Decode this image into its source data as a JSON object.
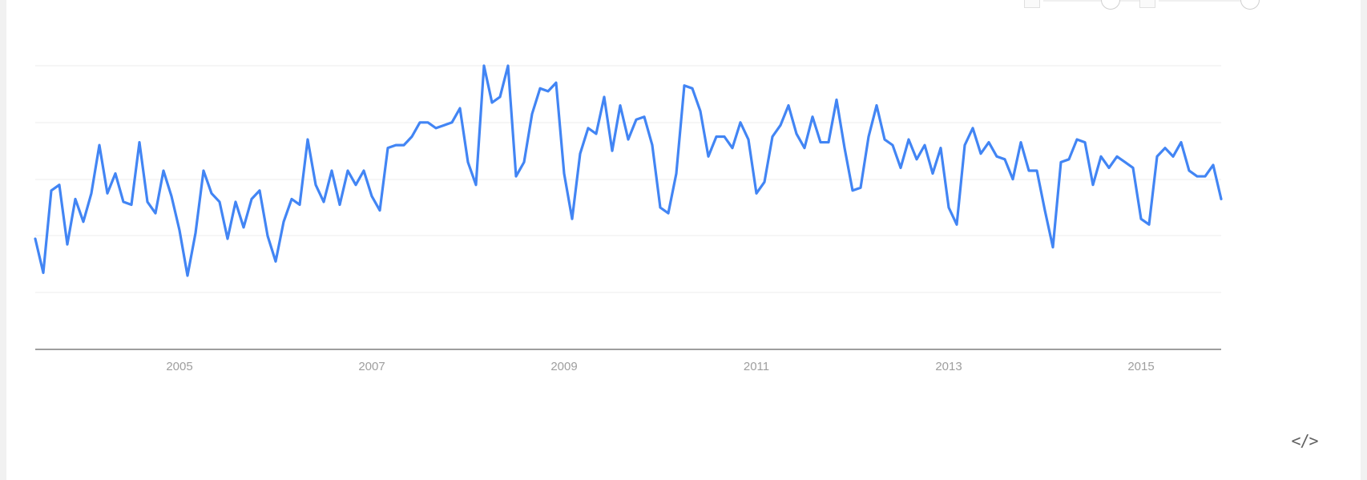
{
  "chart_data": {
    "type": "line",
    "title": "",
    "xlabel": "",
    "ylabel": "",
    "x_ticks": [
      "2005",
      "2007",
      "2009",
      "2011",
      "2013",
      "2015"
    ],
    "grid": true,
    "legend": "none",
    "y_range": [
      0,
      100
    ],
    "x_start": "2004-01",
    "x_end": "2016-05",
    "series": [
      {
        "color": "#4285f4",
        "values": [
          39,
          27,
          56,
          58,
          37,
          53,
          45,
          55,
          72,
          55,
          62,
          52,
          51,
          73,
          52,
          48,
          63,
          54,
          42,
          26,
          41,
          63,
          55,
          52,
          39,
          52,
          43,
          53,
          56,
          40,
          31,
          45,
          53,
          51,
          74,
          58,
          52,
          63,
          51,
          63,
          58,
          63,
          54,
          49,
          71,
          72,
          72,
          75,
          80,
          80,
          78,
          79,
          80,
          85,
          66,
          58,
          100,
          87,
          89,
          100,
          61,
          66,
          83,
          92,
          91,
          94,
          62,
          46,
          69,
          78,
          76,
          89,
          70,
          86,
          74,
          81,
          82,
          72,
          50,
          48,
          62,
          93,
          92,
          84,
          68,
          75,
          75,
          71,
          80,
          74,
          55,
          59,
          75,
          79,
          86,
          76,
          71,
          82,
          73,
          73,
          88,
          71,
          56,
          57,
          75,
          86,
          74,
          72,
          64,
          74,
          67,
          72,
          62,
          71,
          50,
          44,
          72,
          78,
          69,
          73,
          68,
          67,
          60,
          73,
          63,
          63,
          49,
          36,
          66,
          67,
          74,
          73,
          58,
          68,
          64,
          68,
          66,
          64,
          46,
          44,
          68,
          71,
          68,
          73,
          63,
          61,
          61,
          65,
          53
        ]
      }
    ]
  },
  "controls": {
    "embed_label": "</>"
  }
}
